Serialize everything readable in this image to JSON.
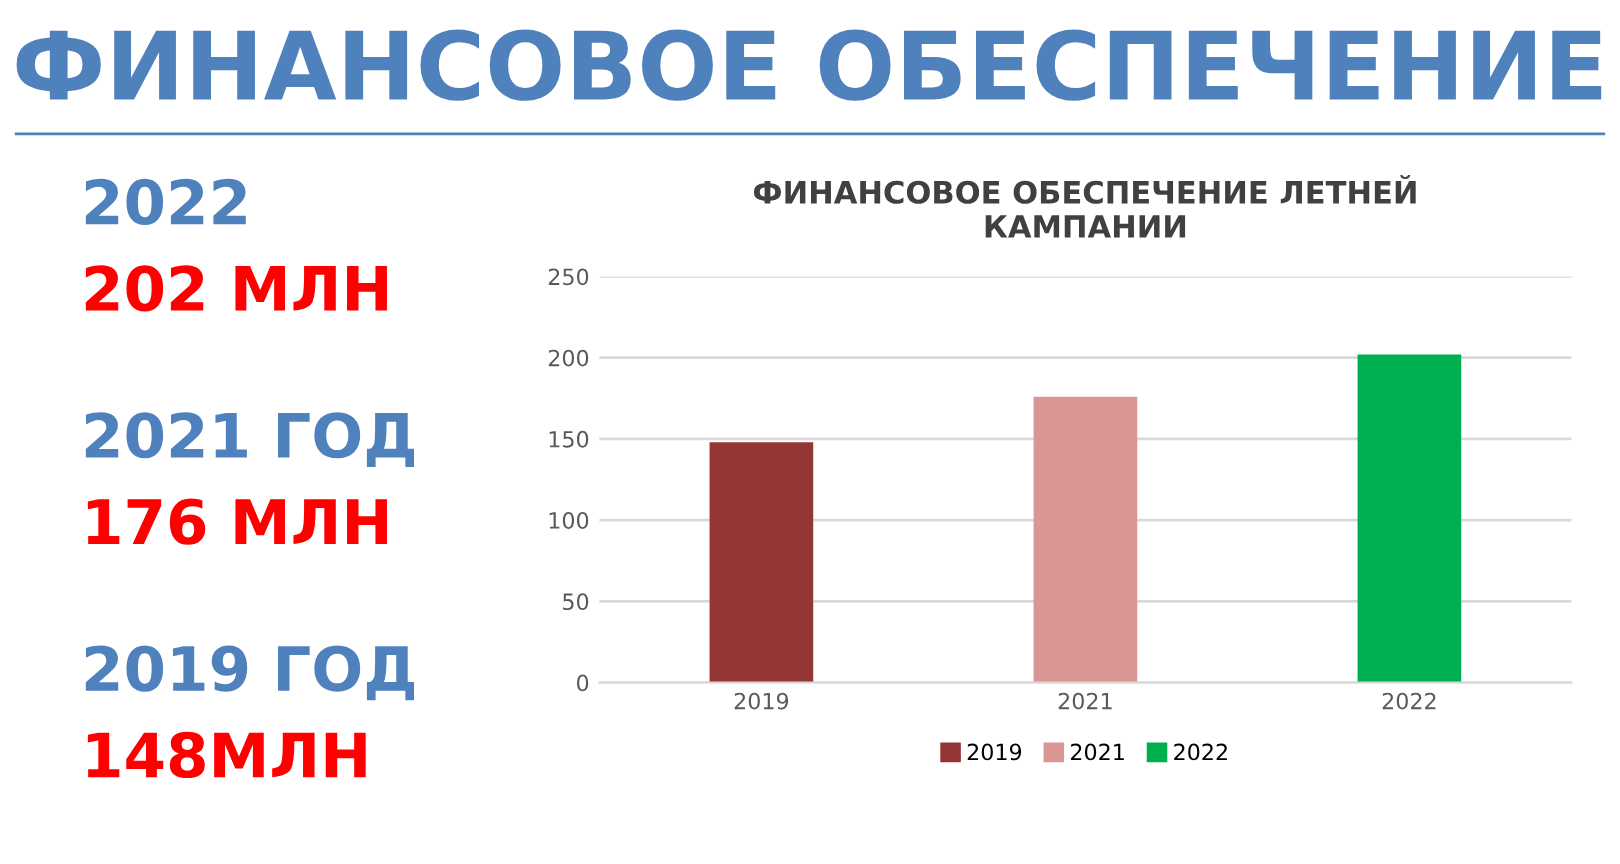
{
  "chart_data": {
    "type": "bar",
    "title": "ФИНАНСОВОЕ ОБЕСПЕЧЕНИЕ",
    "subtitle": "ФИНАНСОВОЕ ОБЕСПЕЧЕНИЕ ЛЕТНЕЙ\nКАМПАНИИ",
    "categories": [
      "2019",
      "2021",
      "2022"
    ],
    "series": [
      {
        "name": "2019",
        "color": "#943634",
        "values": [
          148,
          null,
          null
        ]
      },
      {
        "name": "2021",
        "color": "#d99694",
        "values": [
          null,
          176,
          null
        ]
      },
      {
        "name": "2022",
        "color": "#00b050",
        "values": [
          null,
          null,
          202
        ]
      }
    ],
    "ylim": [
      0,
      250
    ],
    "yticks": [
      0,
      50,
      100,
      150,
      200,
      250
    ],
    "grid": "y",
    "legend": "bottom",
    "annotations": [
      "2022",
      "202 МЛН",
      "2021 ГОД",
      "176 МЛН",
      "2019 ГОД",
      "148МЛН"
    ]
  }
}
